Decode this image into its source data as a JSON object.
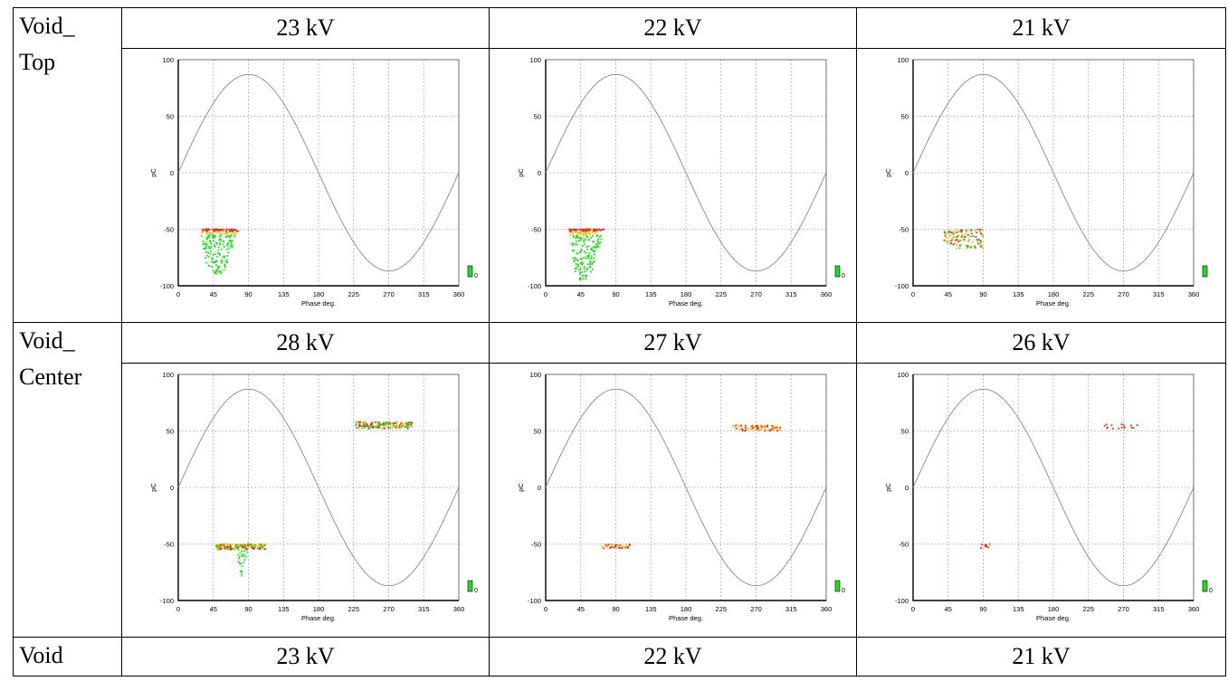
{
  "table": {
    "rows": [
      {
        "label_line1": "Void_",
        "label_line2": "Top",
        "headers": [
          "23 kV",
          "22 kV",
          "21 kV"
        ]
      },
      {
        "label_line1": "Void_",
        "label_line2": "Center",
        "headers": [
          "28 kV",
          "27 kV",
          "26 kV"
        ]
      },
      {
        "label_line1": "Void",
        "label_line2": "",
        "headers": [
          "23 kV",
          "22 kV",
          "21 kV"
        ]
      }
    ]
  },
  "colors": {
    "low": "#22dd22",
    "mid": "#f0c020",
    "high": "#e03020",
    "sine": "#888888",
    "grid": "#b0b0b0"
  },
  "chart_data": [
    {
      "type": "scatter",
      "panel": "Void_Top 23 kV",
      "xlabel": "Phase deg.",
      "ylabel": "pC",
      "xlim": [
        0,
        360
      ],
      "ylim": [
        -100,
        100
      ],
      "xticks": [
        "0",
        "45",
        "90",
        "135",
        "180",
        "225",
        "270",
        "315",
        "360"
      ],
      "yticks": [
        "100",
        "50",
        "0",
        "-50",
        "-100"
      ],
      "sine_amplitude": 87,
      "clusters": [
        {
          "x": [
            28,
            78
          ],
          "y": [
            -50,
            -90
          ],
          "palette": [
            "high",
            "mid",
            "low"
          ],
          "count": 240,
          "shape": "tail-down"
        }
      ],
      "legend_label": "0"
    },
    {
      "type": "scatter",
      "panel": "Void_Top 22 kV",
      "xlabel": "Phase deg.",
      "ylabel": "pC",
      "xlim": [
        0,
        360
      ],
      "ylim": [
        -100,
        100
      ],
      "xticks": [
        "0",
        "45",
        "90",
        "135",
        "180",
        "225",
        "270",
        "315",
        "360"
      ],
      "yticks": [
        "100",
        "50",
        "0",
        "-50",
        "-100"
      ],
      "sine_amplitude": 87,
      "clusters": [
        {
          "x": [
            30,
            75
          ],
          "y": [
            -50,
            -95
          ],
          "palette": [
            "high",
            "mid",
            "low"
          ],
          "count": 240,
          "shape": "tail-down"
        }
      ],
      "legend_label": "0"
    },
    {
      "type": "scatter",
      "panel": "Void_Top 21 kV",
      "xlabel": "Phase deg.",
      "ylabel": "pC",
      "xlim": [
        0,
        360
      ],
      "ylim": [
        -100,
        100
      ],
      "xticks": [
        "0",
        "45",
        "90",
        "135",
        "180",
        "225",
        "270",
        "315",
        "360"
      ],
      "yticks": [
        "100",
        "50",
        "0",
        "-50",
        "-100"
      ],
      "sine_amplitude": 87,
      "clusters": [
        {
          "x": [
            40,
            90
          ],
          "y": [
            -50,
            -67
          ],
          "palette": [
            "high",
            "mid",
            "low"
          ],
          "count": 110,
          "shape": "band"
        }
      ],
      "legend_label": ""
    },
    {
      "type": "scatter",
      "panel": "Void_Center 28 kV",
      "xlabel": "Phase deg.",
      "ylabel": "pC",
      "xlim": [
        0,
        360
      ],
      "ylim": [
        -100,
        100
      ],
      "xticks": [
        "0",
        "45",
        "90",
        "135",
        "180",
        "225",
        "270",
        "315",
        "360"
      ],
      "yticks": [
        "100",
        "50",
        "0",
        "-50",
        "-100"
      ],
      "sine_amplitude": 87,
      "clusters": [
        {
          "x": [
            48,
            112
          ],
          "y": [
            -50,
            -55
          ],
          "palette": [
            "high",
            "mid",
            "low"
          ],
          "count": 160,
          "shape": "band"
        },
        {
          "x": [
            76,
            92
          ],
          "y": [
            -55,
            -85
          ],
          "palette": [
            "low"
          ],
          "count": 25,
          "shape": "tail-down"
        },
        {
          "x": [
            228,
            300
          ],
          "y": [
            52,
            58
          ],
          "palette": [
            "high",
            "mid",
            "low"
          ],
          "count": 160,
          "shape": "band"
        }
      ],
      "legend_label": "0"
    },
    {
      "type": "scatter",
      "panel": "Void_Center 27 kV",
      "xlabel": "Phase deg.",
      "ylabel": "pC",
      "xlim": [
        0,
        360
      ],
      "ylim": [
        -100,
        100
      ],
      "xticks": [
        "0",
        "45",
        "90",
        "135",
        "180",
        "225",
        "270",
        "315",
        "360"
      ],
      "yticks": [
        "100",
        "50",
        "0",
        "-50",
        "-100"
      ],
      "sine_amplitude": 87,
      "clusters": [
        {
          "x": [
            72,
            108
          ],
          "y": [
            -50,
            -54
          ],
          "palette": [
            "high",
            "mid"
          ],
          "count": 40,
          "shape": "band"
        },
        {
          "x": [
            240,
            302
          ],
          "y": [
            50,
            55
          ],
          "palette": [
            "high",
            "mid"
          ],
          "count": 80,
          "shape": "band"
        }
      ],
      "legend_label": "0"
    },
    {
      "type": "scatter",
      "panel": "Void_Center 26 kV",
      "xlabel": "Phase deg.",
      "ylabel": "pC",
      "xlim": [
        0,
        360
      ],
      "ylim": [
        -100,
        100
      ],
      "xticks": [
        "0",
        "45",
        "90",
        "135",
        "180",
        "225",
        "270",
        "315",
        "360"
      ],
      "yticks": [
        "100",
        "50",
        "0",
        "-50",
        "-100"
      ],
      "sine_amplitude": 87,
      "clusters": [
        {
          "x": [
            87,
            100
          ],
          "y": [
            -50,
            -54
          ],
          "palette": [
            "high"
          ],
          "count": 8,
          "shape": "band"
        },
        {
          "x": [
            245,
            290
          ],
          "y": [
            52,
            56
          ],
          "palette": [
            "high"
          ],
          "count": 16,
          "shape": "band"
        }
      ],
      "legend_label": "0"
    }
  ]
}
